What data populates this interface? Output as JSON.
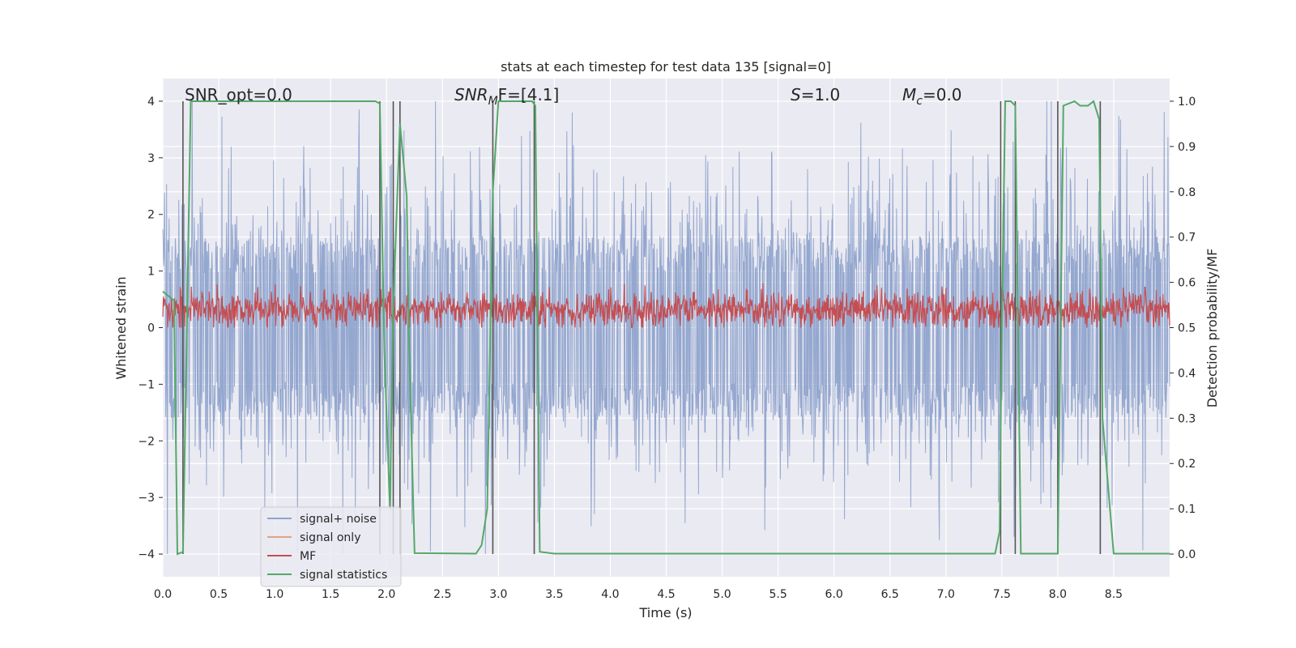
{
  "chart_data": {
    "type": "line",
    "title": "stats at each timestep for test data 135 [signal=0]",
    "xlabel": "Time (s)",
    "ylabel": "Whitened strain",
    "y2label": "Detection probability/MF",
    "xlim": [
      0.0,
      9.0
    ],
    "ylim": [
      -4.4,
      4.4
    ],
    "y2lim": [
      -0.05,
      1.05
    ],
    "x_ticks": [
      "0.0",
      "0.5",
      "1.0",
      "1.5",
      "2.0",
      "2.5",
      "3.0",
      "3.5",
      "4.0",
      "4.5",
      "5.0",
      "5.5",
      "6.0",
      "6.5",
      "7.0",
      "7.5",
      "8.0",
      "8.5"
    ],
    "y_ticks": [
      "4",
      "3",
      "2",
      "1",
      "0",
      "−1",
      "−2",
      "−3",
      "−4"
    ],
    "y2_ticks": [
      "1.0",
      "0.9",
      "0.8",
      "0.7",
      "0.6",
      "0.5",
      "0.4",
      "0.3",
      "0.2",
      "0.1",
      "0.0"
    ],
    "grid": true,
    "legend_position": "lower-left",
    "annotations": {
      "snr_opt": "SNR_opt=0.0",
      "snr_mf_sym": "SNR",
      "snr_mf_sub": "M",
      "snr_mf_tail": "F=[4.1]",
      "s_sym": "S",
      "s_val": "=1.0",
      "mc_sym": "M",
      "mc_sub": "c",
      "mc_val": "=0.0"
    },
    "series": [
      {
        "name": "signal+ noise",
        "color": "#8fa3cc",
        "noise_amplitude": 1.6,
        "max_abs": 4.0
      },
      {
        "name": "signal only",
        "color": "#e6a08a",
        "values": []
      },
      {
        "name": "MF",
        "color": "#c44e52",
        "axis": "y2",
        "center": 0.54,
        "range": [
          0.5,
          0.62
        ]
      },
      {
        "name": "signal statistics",
        "color": "#55a868",
        "axis": "y2",
        "x": [
          0.0,
          0.1,
          0.13,
          0.18,
          0.25,
          0.3,
          0.5,
          1.0,
          1.5,
          1.9,
          1.94,
          1.98,
          2.03,
          2.06,
          2.12,
          2.18,
          2.2,
          2.25,
          2.8,
          2.85,
          2.9,
          2.95,
          3.0,
          3.3,
          3.33,
          3.37,
          3.5,
          4.0,
          5.0,
          6.0,
          7.0,
          7.44,
          7.48,
          7.5,
          7.53,
          7.58,
          7.62,
          7.67,
          7.75,
          7.95,
          8.0,
          8.05,
          8.15,
          8.2,
          8.27,
          8.32,
          8.37,
          8.4,
          8.5,
          9.0
        ],
        "y": [
          0.58,
          0.56,
          0.0,
          0.005,
          1.0,
          1.0,
          1.0,
          1.0,
          1.0,
          1.0,
          0.995,
          0.45,
          0.1,
          0.55,
          0.95,
          0.79,
          0.48,
          0.002,
          0.001,
          0.02,
          0.1,
          0.8,
          1.0,
          1.0,
          0.99,
          0.005,
          0.001,
          0.001,
          0.001,
          0.001,
          0.001,
          0.001,
          0.05,
          0.5,
          1.0,
          1.0,
          0.99,
          0.001,
          0.001,
          0.001,
          0.001,
          0.99,
          1.0,
          0.99,
          0.99,
          1.0,
          0.96,
          0.3,
          0.001,
          0.001
        ]
      }
    ],
    "event_lines_x": [
      0.18,
      1.94,
      2.06,
      2.12,
      2.95,
      3.32,
      7.49,
      7.62,
      8.0,
      8.38
    ]
  }
}
